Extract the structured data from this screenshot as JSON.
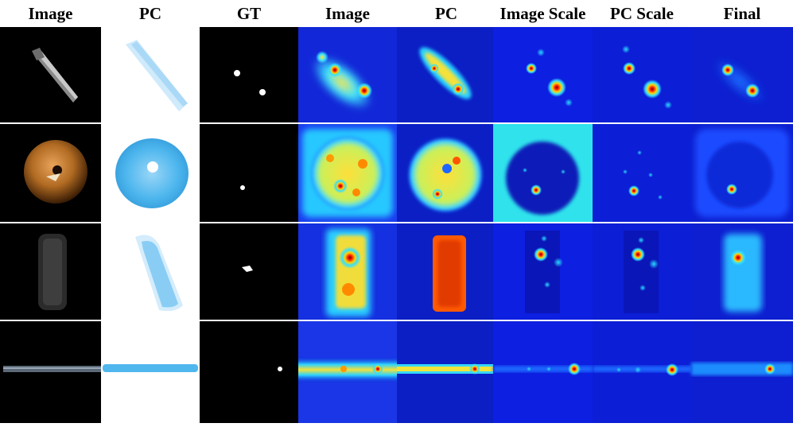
{
  "columns": [
    "Image",
    "PC",
    "GT",
    "Image",
    "PC",
    "Image Scale",
    "PC Scale",
    "Final"
  ],
  "rows": [
    {
      "sample": "screw-like object",
      "panels": [
        "rgb-image",
        "point-cloud",
        "ground-truth-mask",
        "image-heatmap",
        "pc-heatmap",
        "image-scale-heatmap",
        "pc-scale-heatmap",
        "final-heatmap"
      ]
    },
    {
      "sample": "bagel",
      "panels": [
        "rgb-image",
        "point-cloud",
        "ground-truth-mask",
        "image-heatmap",
        "pc-heatmap",
        "image-scale-heatmap",
        "pc-scale-heatmap",
        "final-heatmap"
      ]
    },
    {
      "sample": "tire",
      "panels": [
        "rgb-image",
        "point-cloud",
        "ground-truth-mask",
        "image-heatmap",
        "pc-heatmap",
        "image-scale-heatmap",
        "pc-scale-heatmap",
        "final-heatmap"
      ]
    },
    {
      "sample": "cable/rope",
      "panels": [
        "rgb-image",
        "point-cloud",
        "ground-truth-mask",
        "image-heatmap",
        "pc-heatmap",
        "image-scale-heatmap",
        "pc-scale-heatmap",
        "final-heatmap"
      ]
    }
  ],
  "colors": {
    "heatmap_low": "#0a1fd6",
    "heatmap_mid": "#19d3ff",
    "heatmap_warm": "#ffe23a",
    "heatmap_hot": "#e01010",
    "point_cloud": "#4fb7ee",
    "image_background": "#000000"
  }
}
